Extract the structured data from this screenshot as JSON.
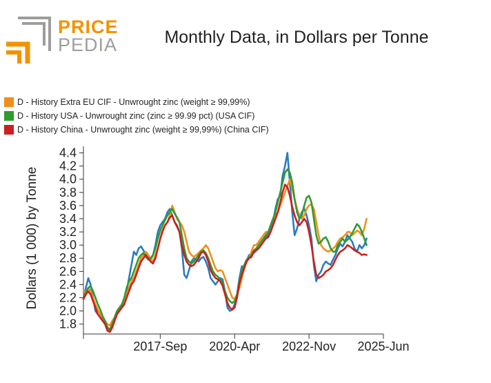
{
  "logo": {
    "word1": "PRICE",
    "word2": "PEDIA",
    "word1_color": "#f39200",
    "word2_color": "#9d9d9c",
    "bracket_color": "#f39200",
    "frame_color": "#9d9d9c"
  },
  "chart_data": {
    "type": "line",
    "title": "Monthly Data, in Dollars per Tonne",
    "xlabel": "",
    "ylabel": "Dollars (1 000) by Tonne",
    "ylim": [
      1.65,
      4.5
    ],
    "yticks": [
      1.8,
      2.0,
      2.2,
      2.4,
      2.6,
      2.8,
      3.0,
      3.2,
      3.4,
      3.6,
      3.8,
      4.0,
      4.2,
      4.4
    ],
    "ytick_labels": [
      "1.8",
      "2.0",
      "2.2",
      "2.4",
      "2.6",
      "2.8",
      "3.0",
      "3.2",
      "3.4",
      "3.6",
      "3.8",
      "4.0",
      "4.2",
      "4.4"
    ],
    "x_range": [
      "2015-Jan",
      "2025-Jun"
    ],
    "xticks": [
      "2015-Jan",
      "2017-Sep",
      "2020-Apr",
      "2022-Nov",
      "2025-Jun"
    ],
    "xtick_labels": [
      "",
      "2017-Sep",
      "2020-Apr",
      "2022-Nov",
      "2025-Jun"
    ],
    "grid": false,
    "legend_position": "top-left",
    "series": [
      {
        "name": "D - History Extra EU CIF - Unwrought zinc (weight ≥ 99,99%)",
        "color": "#f28e1c",
        "start": "2015-Jan",
        "values": [
          2.28,
          2.3,
          2.35,
          2.3,
          2.2,
          2.1,
          2.02,
          1.95,
          1.9,
          1.85,
          1.8,
          1.78,
          1.85,
          1.9,
          2.0,
          2.05,
          2.1,
          2.15,
          2.25,
          2.35,
          2.45,
          2.5,
          2.6,
          2.7,
          2.8,
          2.85,
          2.9,
          2.85,
          2.8,
          2.75,
          2.85,
          2.95,
          3.1,
          3.2,
          3.3,
          3.35,
          3.45,
          3.6,
          3.5,
          3.4,
          3.35,
          3.3,
          3.2,
          3.05,
          2.9,
          2.85,
          2.82,
          2.85,
          2.88,
          2.92,
          2.95,
          3.0,
          2.95,
          2.85,
          2.75,
          2.65,
          2.6,
          2.62,
          2.6,
          2.5,
          2.4,
          2.3,
          2.2,
          2.18,
          2.25,
          2.35,
          2.5,
          2.65,
          2.75,
          2.8,
          2.9,
          3.0,
          3.0,
          3.05,
          3.1,
          3.15,
          3.2,
          3.2,
          3.3,
          3.4,
          3.45,
          3.5,
          3.6,
          3.7,
          3.8,
          3.9,
          4.0,
          3.85,
          3.7,
          3.55,
          3.45,
          3.4,
          3.45,
          3.55,
          3.6,
          3.62,
          3.55,
          3.35,
          3.15,
          3.0,
          2.95,
          2.92,
          2.9,
          2.92,
          2.95,
          2.98,
          3.05,
          3.1,
          3.12,
          3.15,
          3.2,
          3.2,
          3.15,
          3.18,
          3.22,
          3.2,
          3.15,
          3.25,
          3.4
        ]
      },
      {
        "name": "D - History USA - Unwrought zinc (zinc ≥ 99.99 pct) (USA CIF)",
        "color": "#2e9c2e",
        "start": "2015-Jan",
        "values": [
          2.2,
          2.28,
          2.35,
          2.38,
          2.3,
          2.2,
          2.1,
          2.02,
          1.92,
          1.85,
          1.75,
          1.72,
          1.8,
          1.9,
          2.0,
          2.05,
          2.1,
          2.2,
          2.35,
          2.45,
          2.5,
          2.6,
          2.7,
          2.8,
          2.85,
          2.88,
          2.82,
          2.78,
          2.8,
          2.85,
          2.95,
          3.1,
          3.22,
          3.3,
          3.38,
          3.45,
          3.5,
          3.55,
          3.48,
          3.42,
          3.35,
          3.15,
          2.95,
          2.8,
          2.75,
          2.72,
          2.75,
          2.8,
          2.85,
          2.9,
          2.92,
          2.88,
          2.8,
          2.7,
          2.6,
          2.55,
          2.52,
          2.48,
          2.42,
          2.3,
          2.2,
          2.15,
          2.12,
          2.15,
          2.25,
          2.45,
          2.6,
          2.7,
          2.78,
          2.8,
          2.85,
          2.92,
          2.95,
          3.0,
          3.05,
          3.1,
          3.15,
          3.2,
          3.3,
          3.4,
          3.5,
          3.65,
          3.8,
          3.95,
          4.1,
          4.15,
          4.1,
          3.95,
          3.7,
          3.5,
          3.4,
          3.45,
          3.6,
          3.72,
          3.75,
          3.65,
          3.4,
          3.15,
          3.02,
          3.05,
          3.1,
          3.12,
          3.05,
          2.95,
          2.9,
          2.9,
          3.0,
          3.05,
          3.1,
          3.05,
          3.08,
          3.12,
          3.18,
          3.25,
          3.32,
          3.28,
          3.2,
          3.1,
          3.0
        ]
      },
      {
        "name": "D - History China - Unwrought zinc (weight ≥ 99,99%) (China CIF)",
        "color": "#cc1f1f",
        "start": "2015-Jan",
        "values": [
          2.18,
          2.25,
          2.3,
          2.25,
          2.15,
          2.05,
          1.95,
          1.9,
          1.85,
          1.8,
          1.7,
          1.68,
          1.75,
          1.85,
          1.95,
          2.0,
          2.05,
          2.1,
          2.2,
          2.3,
          2.4,
          2.45,
          2.55,
          2.65,
          2.75,
          2.8,
          2.85,
          2.8,
          2.75,
          2.72,
          2.8,
          2.95,
          3.1,
          3.22,
          3.3,
          3.35,
          3.42,
          3.45,
          3.35,
          3.28,
          3.2,
          3.0,
          2.85,
          2.75,
          2.7,
          2.68,
          2.7,
          2.75,
          2.8,
          2.88,
          2.9,
          2.85,
          2.75,
          2.62,
          2.55,
          2.5,
          2.48,
          2.45,
          2.38,
          2.25,
          2.12,
          2.05,
          2.02,
          2.05,
          2.2,
          2.42,
          2.55,
          2.65,
          2.75,
          2.8,
          2.82,
          2.9,
          2.92,
          2.95,
          3.0,
          3.05,
          3.1,
          3.12,
          3.2,
          3.3,
          3.4,
          3.5,
          3.65,
          3.8,
          3.92,
          3.88,
          3.75,
          3.58,
          3.45,
          3.35,
          3.3,
          3.35,
          3.4,
          3.35,
          3.2,
          3.0,
          2.75,
          2.55,
          2.5,
          2.52,
          2.55,
          2.6,
          2.62,
          2.65,
          2.7,
          2.78,
          2.85,
          2.9,
          2.92,
          2.95,
          3.0,
          2.98,
          2.95,
          2.92,
          2.9,
          2.88,
          2.85,
          2.86,
          2.85
        ]
      },
      {
        "name": "",
        "color": "#2b7bbd",
        "start": "2015-Jan",
        "values": [
          2.2,
          2.35,
          2.5,
          2.4,
          2.2,
          2.0,
          1.95,
          1.9,
          1.88,
          1.82,
          1.75,
          1.7,
          1.78,
          1.88,
          1.98,
          2.02,
          2.08,
          2.15,
          2.3,
          2.5,
          2.7,
          2.9,
          2.85,
          2.95,
          2.98,
          2.92,
          2.85,
          2.8,
          2.78,
          2.85,
          3.0,
          3.2,
          3.3,
          3.35,
          3.4,
          3.5,
          3.55,
          3.45,
          3.35,
          3.3,
          3.2,
          2.95,
          2.55,
          2.5,
          2.62,
          2.75,
          2.8,
          2.78,
          2.75,
          2.8,
          2.82,
          2.75,
          2.65,
          2.5,
          2.45,
          2.4,
          2.45,
          2.5,
          2.48,
          2.3,
          2.05,
          2.0,
          2.02,
          2.1,
          2.25,
          2.5,
          2.68,
          2.65,
          2.75,
          2.85,
          2.85,
          2.88,
          2.92,
          2.95,
          3.0,
          3.05,
          3.12,
          3.15,
          3.25,
          3.35,
          3.55,
          3.7,
          3.75,
          4.05,
          4.2,
          4.4,
          3.95,
          3.5,
          3.15,
          3.25,
          3.4,
          3.5,
          3.55,
          3.45,
          3.3,
          3.1,
          2.7,
          2.45,
          2.55,
          2.6,
          2.7,
          2.75,
          2.72,
          2.7,
          2.78,
          2.85,
          2.95,
          3.02,
          2.98,
          3.05,
          3.15,
          3.1,
          3.05,
          2.95,
          2.9,
          3.0,
          2.95,
          3.0,
          3.1
        ]
      }
    ]
  }
}
